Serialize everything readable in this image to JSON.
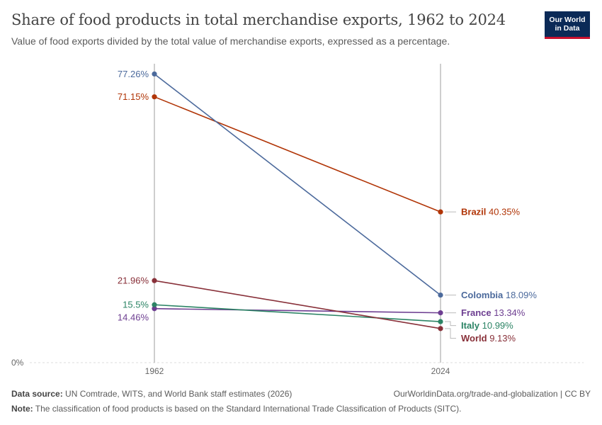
{
  "header": {
    "title": "Share of food products in total merchandise exports, 1962 to 2024",
    "subtitle": "Value of food exports divided by the total value of merchandise exports, expressed as a percentage.",
    "logo_line1": "Our World",
    "logo_line2": "in Data",
    "logo_color": "#0b2a57",
    "logo_accent": "#c8102e"
  },
  "chart_data": {
    "type": "line",
    "x": [
      1962,
      2024
    ],
    "x_tick_labels": [
      "1962",
      "2024"
    ],
    "y_axis_label": "0%",
    "ylim": [
      0,
      80
    ],
    "series": [
      {
        "name": "Brazil",
        "values": [
          71.15,
          40.35
        ],
        "start_label": "71.15%",
        "end_value_label": "40.35%",
        "color": "#b13507"
      },
      {
        "name": "Colombia",
        "values": [
          77.26,
          18.09
        ],
        "start_label": "77.26%",
        "end_value_label": "18.09%",
        "color": "#4c6a9c"
      },
      {
        "name": "France",
        "values": [
          14.46,
          13.34
        ],
        "start_label": "14.46%",
        "end_value_label": "13.34%",
        "color": "#6d3e91"
      },
      {
        "name": "Italy",
        "values": [
          15.5,
          10.99
        ],
        "start_label": "15.5%",
        "end_value_label": "10.99%",
        "color": "#2c8465"
      },
      {
        "name": "World",
        "values": [
          21.96,
          9.13
        ],
        "start_label": "21.96%",
        "end_value_label": "9.13%",
        "color": "#883039"
      }
    ]
  },
  "footer": {
    "source_label": "Data source:",
    "source_text": "UN Comtrade, WITS, and World Bank staff estimates (2026)",
    "url_text": "OurWorldinData.org/trade-and-globalization | CC BY",
    "note_label": "Note:",
    "note_text": "The classification of food products is based on the Standard International Trade Classification of Products (SITC)."
  }
}
